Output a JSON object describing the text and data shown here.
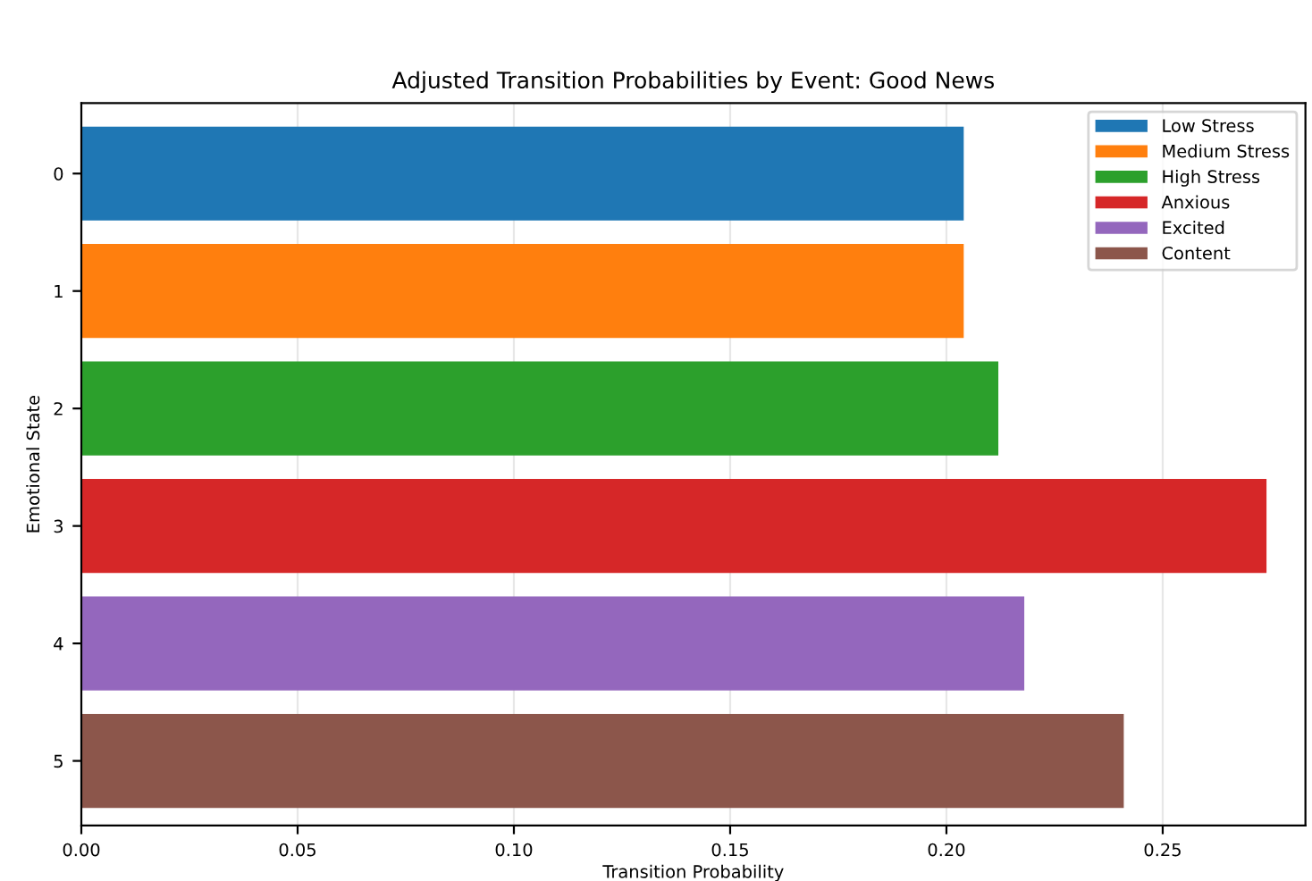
{
  "chart_data": {
    "type": "bar",
    "orientation": "horizontal",
    "title": "Adjusted Transition Probabilities by Event: Good News",
    "xlabel": "Transition Probability",
    "ylabel": "Emotional State",
    "categories": [
      "0",
      "1",
      "2",
      "3",
      "4",
      "5"
    ],
    "series": [
      {
        "name": "Low Stress",
        "color": "#1f77b4",
        "values": [
          0.204,
          null,
          null,
          null,
          null,
          null
        ]
      },
      {
        "name": "Medium Stress",
        "color": "#ff7f0e",
        "values": [
          null,
          0.204,
          null,
          null,
          null,
          null
        ]
      },
      {
        "name": "High Stress",
        "color": "#2ca02c",
        "values": [
          null,
          null,
          0.212,
          null,
          null,
          null
        ]
      },
      {
        "name": "Anxious",
        "color": "#d62728",
        "values": [
          null,
          null,
          null,
          0.274,
          null,
          null
        ]
      },
      {
        "name": "Excited",
        "color": "#9467bd",
        "values": [
          null,
          null,
          null,
          null,
          0.218,
          null
        ]
      },
      {
        "name": "Content",
        "color": "#8c564b",
        "values": [
          null,
          null,
          null,
          null,
          null,
          0.241
        ]
      }
    ],
    "xlim": [
      0,
      0.283
    ],
    "xticks": [
      {
        "value": 0,
        "label": "0.00"
      },
      {
        "value": 0.05,
        "label": "0.05"
      },
      {
        "value": 0.1,
        "label": "0.10"
      },
      {
        "value": 0.15,
        "label": "0.15"
      },
      {
        "value": 0.2,
        "label": "0.20"
      },
      {
        "value": 0.25,
        "label": "0.25"
      }
    ],
    "grid": "x",
    "legend": "top right"
  }
}
